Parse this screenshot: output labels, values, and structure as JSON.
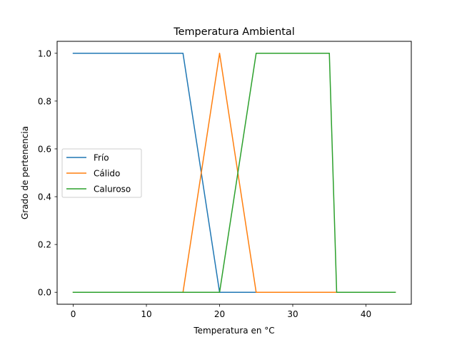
{
  "chart_data": {
    "type": "line",
    "title": "Temperatura Ambiental",
    "xlabel": "Temperatura en °C",
    "ylabel": "Grado de pertenencia",
    "xlim": [
      -2.2,
      46.2
    ],
    "ylim": [
      -0.05,
      1.05
    ],
    "xticks": [
      0,
      10,
      20,
      30,
      40
    ],
    "yticks": [
      0.0,
      0.2,
      0.4,
      0.6,
      0.8,
      1.0
    ],
    "xtick_labels": [
      "0",
      "10",
      "20",
      "30",
      "40"
    ],
    "ytick_labels": [
      "0.0",
      "0.2",
      "0.4",
      "0.6",
      "0.8",
      "1.0"
    ],
    "grid": false,
    "legend_position": "center-left",
    "series": [
      {
        "name": "Frío",
        "color": "#1f77b4",
        "x": [
          0,
          15,
          20,
          44
        ],
        "y": [
          1,
          1,
          0,
          0
        ]
      },
      {
        "name": "Cálido",
        "color": "#ff7f0e",
        "x": [
          0,
          15,
          20,
          25,
          44
        ],
        "y": [
          0,
          0,
          1,
          0,
          0
        ]
      },
      {
        "name": "Caluroso",
        "color": "#2ca02c",
        "x": [
          0,
          20,
          25,
          35,
          36,
          44
        ],
        "y": [
          0,
          0,
          1,
          1,
          0,
          0
        ]
      }
    ]
  }
}
